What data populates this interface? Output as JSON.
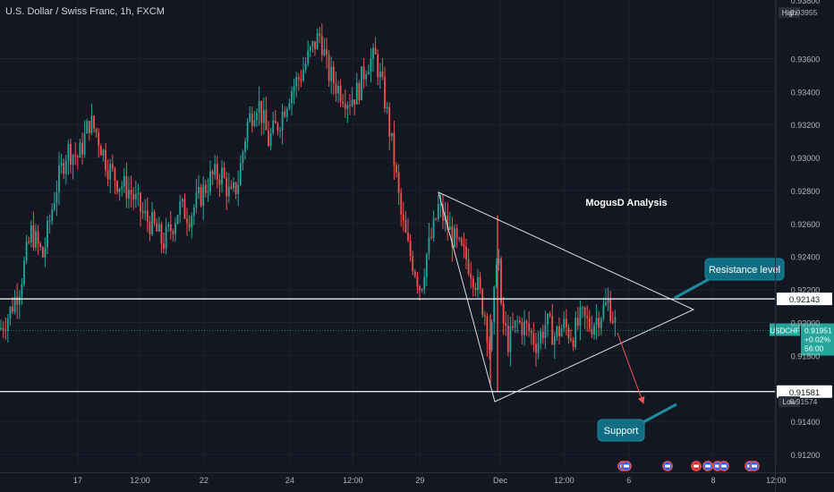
{
  "header": {
    "title": "U.S. Dollar / Swiss Franc, 1h, FXCM"
  },
  "chart_data": {
    "type": "candlestick",
    "symbol": "USDCHF",
    "timeframe": "1h",
    "ylim": [
      0.9115,
      0.9395
    ],
    "y_ticks": [
      "0.93600",
      "0.93400",
      "0.93200",
      "0.93000",
      "0.92800",
      "0.92600",
      "0.92400",
      "0.92200",
      "0.92000",
      "0.91800",
      "0.91400",
      "0.91200"
    ],
    "y_tick_values": [
      0.936,
      0.934,
      0.932,
      0.93,
      0.928,
      0.926,
      0.924,
      0.922,
      0.92,
      0.918,
      0.914,
      0.912
    ],
    "x_ticks": [
      {
        "label": "17",
        "t": 0.095
      },
      {
        "label": "12:00",
        "t": 0.171
      },
      {
        "label": "22",
        "t": 0.249
      },
      {
        "label": "24",
        "t": 0.354
      },
      {
        "label": "12:00",
        "t": 0.431
      },
      {
        "label": "29",
        "t": 0.513
      },
      {
        "label": "Dec",
        "t": 0.611
      },
      {
        "label": "12:00",
        "t": 0.689
      },
      {
        "label": "6",
        "t": 0.768
      },
      {
        "label": "8",
        "t": 0.871
      },
      {
        "label": "12:00",
        "t": 0.948
      }
    ],
    "levels": [
      {
        "name": "resistance",
        "value": 0.92143,
        "label": "0.92143"
      },
      {
        "name": "support",
        "value": 0.91581,
        "label": "0.91581"
      }
    ],
    "current": {
      "symbol": "USDCHF",
      "price": "0.91951",
      "change": "+0.02%",
      "countdown": "56:00",
      "value": 0.91951
    },
    "high": {
      "label": "High",
      "value_text": "0.93955"
    },
    "low": {
      "label": "Low",
      "value_text": "0.91574",
      "value": 0.91574
    },
    "clipped_top_tick": "0.93800",
    "triangle": {
      "apex": [
        0.9241,
        "0.9208"
      ],
      "points": [
        [
          0.9273,
          0.9201
        ],
        [
          0.9258,
          0.9209
        ]
      ]
    },
    "annotations": {
      "analysis": "MogusD Analysis",
      "resistance_callout": "Resistance level",
      "support_callout": "Support"
    },
    "colors": {
      "up": "#26a69a",
      "down": "#ef5350",
      "bg": "#131722",
      "grid": "#1e222d",
      "text": "#b2b5be",
      "line": "#ffffff"
    },
    "path": [
      [
        0,
        0.9196
      ],
      [
        10,
        0.9205
      ],
      [
        22,
        0.9222
      ],
      [
        35,
        0.9255
      ],
      [
        48,
        0.924
      ],
      [
        62,
        0.928
      ],
      [
        75,
        0.9305
      ],
      [
        88,
        0.93
      ],
      [
        100,
        0.9322
      ],
      [
        108,
        0.9315
      ],
      [
        120,
        0.9295
      ],
      [
        132,
        0.9285
      ],
      [
        145,
        0.928
      ],
      [
        160,
        0.9265
      ],
      [
        172,
        0.9258
      ],
      [
        182,
        0.9248
      ],
      [
        192,
        0.9258
      ],
      [
        200,
        0.927
      ],
      [
        212,
        0.9265
      ],
      [
        222,
        0.9275
      ],
      [
        236,
        0.9288
      ],
      [
        248,
        0.929
      ],
      [
        258,
        0.9275
      ],
      [
        266,
        0.9285
      ],
      [
        276,
        0.932
      ],
      [
        288,
        0.9335
      ],
      [
        300,
        0.931
      ],
      [
        312,
        0.9322
      ],
      [
        324,
        0.934
      ],
      [
        336,
        0.935
      ],
      [
        348,
        0.9365
      ],
      [
        358,
        0.9375
      ],
      [
        366,
        0.9352
      ],
      [
        378,
        0.9342
      ],
      [
        390,
        0.9335
      ],
      [
        400,
        0.934
      ],
      [
        410,
        0.9358
      ],
      [
        420,
        0.936
      ],
      [
        430,
        0.9335
      ],
      [
        440,
        0.93
      ],
      [
        448,
        0.9265
      ],
      [
        456,
        0.9245
      ],
      [
        464,
        0.9232
      ],
      [
        470,
        0.922
      ],
      [
        476,
        0.924
      ],
      [
        484,
        0.9255
      ],
      [
        490,
        0.927
      ],
      [
        500,
        0.9258
      ],
      [
        512,
        0.9245
      ],
      [
        522,
        0.9238
      ],
      [
        532,
        0.9225
      ],
      [
        542,
        0.9205
      ],
      [
        548,
        0.9182
      ],
      [
        552,
        0.9212
      ],
      [
        556,
        0.9255
      ],
      [
        560,
        0.9205
      ],
      [
        568,
        0.9188
      ],
      [
        578,
        0.92
      ],
      [
        590,
        0.9196
      ],
      [
        600,
        0.9187
      ],
      [
        610,
        0.92
      ],
      [
        620,
        0.9192
      ],
      [
        630,
        0.9198
      ],
      [
        640,
        0.9192
      ],
      [
        650,
        0.9203
      ],
      [
        660,
        0.9198
      ],
      [
        670,
        0.9205
      ],
      [
        680,
        0.9212
      ],
      [
        690,
        0.9195
      ]
    ]
  }
}
